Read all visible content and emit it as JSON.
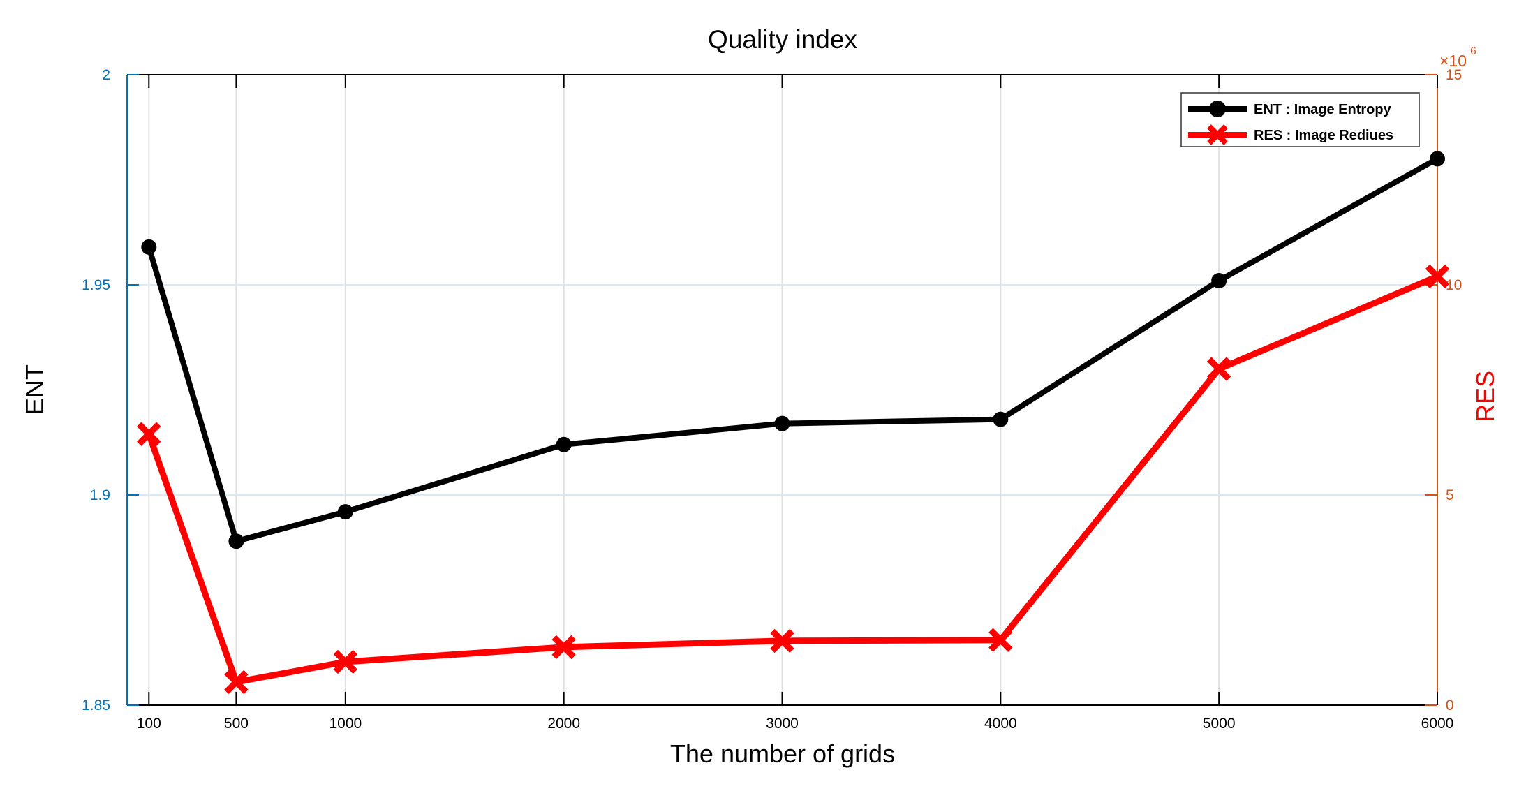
{
  "chart_data": {
    "type": "line",
    "title": "Quality index",
    "xlabel": "The number of grids",
    "x": [
      100,
      500,
      1000,
      2000,
      3000,
      4000,
      5000,
      6000
    ],
    "x_tick_labels": [
      "100",
      "500",
      "1000",
      "2000",
      "3000",
      "4000",
      "5000",
      "6000"
    ],
    "xlim": [
      0,
      6000
    ],
    "grid": true,
    "legend_position": "top-right",
    "left_axis": {
      "label": "ENT",
      "color": "#0072BD",
      "ylim": [
        1.85,
        2.0
      ],
      "ticks": [
        2.0,
        1.95,
        1.9,
        1.85
      ],
      "tick_labels": [
        "2",
        "1.95",
        "1.9",
        "1.85"
      ]
    },
    "right_axis": {
      "label": "RES",
      "label_color": "#FF0000",
      "color": "#D95319",
      "ylim_e6": [
        0,
        15
      ],
      "ticks_e6": [
        15,
        10,
        5,
        0
      ],
      "tick_labels": [
        "15",
        "10",
        "5",
        "0"
      ],
      "multiplier": "×10",
      "exponent": "6"
    },
    "series": [
      {
        "name": "ENT : Image Entropy",
        "axis": "left",
        "color": "#000000",
        "marker": "circle",
        "values": [
          1.959,
          1.889,
          1.896,
          1.912,
          1.917,
          1.918,
          1.951,
          1.98
        ]
      },
      {
        "name": "RES : Image Rediues",
        "axis": "right",
        "color": "#FF0000",
        "marker": "x",
        "values_e6": [
          6.45,
          0.55,
          1.03,
          1.38,
          1.53,
          1.55,
          8.0,
          10.2
        ]
      }
    ],
    "style_colors": {
      "x_grid": "#E0E0E0",
      "y_grid": "#D9EAF5",
      "frame": "#000000",
      "legend_border": "#333333"
    }
  }
}
